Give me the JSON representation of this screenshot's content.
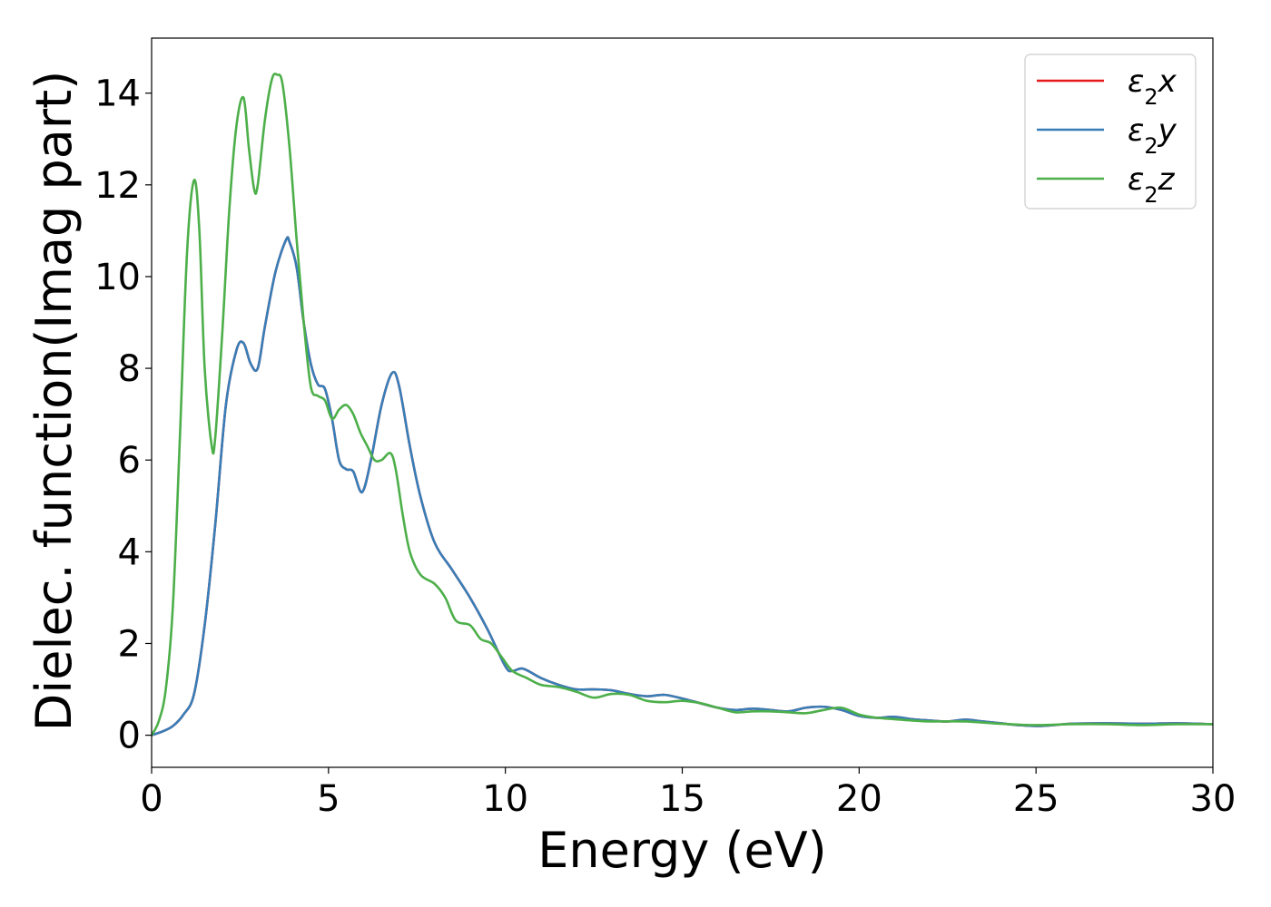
{
  "chart_data": {
    "type": "line",
    "title": "",
    "xlabel": "Energy (eV)",
    "ylabel": "Dielec. function(Imag part)",
    "xlim": [
      0,
      30
    ],
    "ylim": [
      -0.7,
      15.2
    ],
    "xticks": [
      0,
      5,
      10,
      15,
      20,
      25,
      30
    ],
    "yticks": [
      0,
      2,
      4,
      6,
      8,
      10,
      12,
      14
    ],
    "grid": false,
    "legend_position": "top-right",
    "series": [
      {
        "name": "ε2x",
        "legend_base": "ε",
        "legend_sub": "2",
        "legend_var": "x",
        "color": "#e41a1c",
        "x": [
          0,
          0.3,
          0.6,
          0.9,
          1.2,
          1.5,
          1.8,
          2.1,
          2.4,
          2.6,
          2.8,
          3.0,
          3.2,
          3.5,
          3.8,
          3.9,
          4.1,
          4.3,
          4.5,
          4.7,
          4.9,
          5.1,
          5.3,
          5.5,
          5.7,
          5.95,
          6.2,
          6.5,
          6.8,
          7.0,
          7.3,
          7.6,
          8.0,
          8.5,
          9.0,
          9.5,
          10.0,
          10.2,
          10.5,
          11.0,
          11.5,
          12.0,
          12.5,
          13.0,
          13.5,
          14.0,
          14.5,
          15.0,
          15.5,
          16.0,
          16.5,
          17.0,
          17.5,
          18.0,
          18.5,
          19.0,
          19.5,
          20.0,
          20.5,
          21.0,
          21.5,
          22.0,
          22.5,
          23.0,
          23.5,
          24.0,
          24.5,
          25.0,
          25.5,
          26.0,
          27.0,
          28.0,
          29.0,
          30.0
        ],
        "y": [
          0.0,
          0.08,
          0.2,
          0.45,
          0.9,
          2.4,
          4.6,
          7.2,
          8.4,
          8.55,
          8.1,
          8.0,
          8.9,
          10.1,
          10.8,
          10.75,
          10.2,
          9.0,
          8.1,
          7.65,
          7.55,
          6.9,
          6.0,
          5.8,
          5.75,
          5.3,
          6.0,
          7.2,
          7.9,
          7.6,
          6.3,
          5.2,
          4.2,
          3.6,
          3.0,
          2.3,
          1.5,
          1.4,
          1.45,
          1.25,
          1.1,
          1.0,
          1.0,
          0.98,
          0.9,
          0.85,
          0.88,
          0.8,
          0.7,
          0.6,
          0.55,
          0.58,
          0.55,
          0.52,
          0.6,
          0.62,
          0.55,
          0.42,
          0.38,
          0.4,
          0.35,
          0.32,
          0.3,
          0.34,
          0.3,
          0.26,
          0.22,
          0.2,
          0.22,
          0.25,
          0.26,
          0.25,
          0.26,
          0.24
        ]
      },
      {
        "name": "ε2y",
        "legend_base": "ε",
        "legend_sub": "2",
        "legend_var": "y",
        "color": "#377eb8",
        "x": [
          0,
          0.3,
          0.6,
          0.9,
          1.2,
          1.5,
          1.8,
          2.1,
          2.4,
          2.6,
          2.8,
          3.0,
          3.2,
          3.5,
          3.8,
          3.9,
          4.1,
          4.3,
          4.5,
          4.7,
          4.9,
          5.1,
          5.3,
          5.5,
          5.7,
          5.95,
          6.2,
          6.5,
          6.8,
          7.0,
          7.3,
          7.6,
          8.0,
          8.5,
          9.0,
          9.5,
          10.0,
          10.2,
          10.5,
          11.0,
          11.5,
          12.0,
          12.5,
          13.0,
          13.5,
          14.0,
          14.5,
          15.0,
          15.5,
          16.0,
          16.5,
          17.0,
          17.5,
          18.0,
          18.5,
          19.0,
          19.5,
          20.0,
          20.5,
          21.0,
          21.5,
          22.0,
          22.5,
          23.0,
          23.5,
          24.0,
          24.5,
          25.0,
          25.5,
          26.0,
          27.0,
          28.0,
          29.0,
          30.0
        ],
        "y": [
          0.0,
          0.08,
          0.2,
          0.45,
          0.9,
          2.4,
          4.6,
          7.2,
          8.4,
          8.55,
          8.1,
          8.0,
          8.9,
          10.1,
          10.8,
          10.75,
          10.2,
          9.0,
          8.1,
          7.65,
          7.55,
          6.9,
          6.0,
          5.8,
          5.75,
          5.3,
          6.0,
          7.2,
          7.9,
          7.6,
          6.3,
          5.2,
          4.2,
          3.6,
          3.0,
          2.3,
          1.5,
          1.4,
          1.45,
          1.25,
          1.1,
          1.0,
          1.0,
          0.98,
          0.9,
          0.85,
          0.88,
          0.8,
          0.7,
          0.6,
          0.55,
          0.58,
          0.55,
          0.52,
          0.6,
          0.62,
          0.55,
          0.42,
          0.38,
          0.4,
          0.35,
          0.32,
          0.3,
          0.34,
          0.3,
          0.26,
          0.22,
          0.2,
          0.22,
          0.25,
          0.26,
          0.25,
          0.26,
          0.24
        ]
      },
      {
        "name": "ε2z",
        "legend_base": "ε",
        "legend_sub": "2",
        "legend_var": "z",
        "color": "#4daf4a",
        "x": [
          0,
          0.2,
          0.4,
          0.6,
          0.8,
          1.0,
          1.2,
          1.35,
          1.5,
          1.7,
          1.8,
          2.0,
          2.2,
          2.4,
          2.6,
          2.75,
          2.9,
          3.0,
          3.2,
          3.4,
          3.55,
          3.7,
          3.9,
          4.1,
          4.3,
          4.5,
          4.7,
          4.9,
          5.1,
          5.3,
          5.5,
          5.7,
          5.9,
          6.1,
          6.3,
          6.5,
          6.75,
          6.9,
          7.1,
          7.3,
          7.6,
          8.0,
          8.3,
          8.6,
          9.0,
          9.3,
          9.6,
          9.9,
          10.2,
          10.6,
          11.0,
          11.5,
          12.0,
          12.5,
          13.0,
          13.5,
          14.0,
          14.5,
          15.0,
          15.5,
          16.0,
          16.5,
          17.0,
          17.5,
          18.0,
          18.5,
          19.0,
          19.5,
          20.0,
          20.5,
          21.0,
          21.5,
          22.0,
          23.0,
          24.0,
          25.0,
          26.0,
          27.0,
          28.0,
          29.0,
          30.0
        ],
        "y": [
          0.0,
          0.3,
          1.0,
          2.8,
          6.5,
          10.5,
          12.1,
          11.0,
          8.0,
          6.3,
          6.5,
          8.8,
          11.5,
          13.3,
          13.9,
          12.8,
          11.9,
          12.0,
          13.4,
          14.3,
          14.4,
          14.2,
          12.8,
          10.8,
          9.0,
          7.6,
          7.4,
          7.3,
          6.9,
          7.1,
          7.2,
          7.0,
          6.6,
          6.3,
          6.0,
          6.0,
          6.15,
          5.8,
          4.8,
          4.0,
          3.5,
          3.3,
          3.0,
          2.5,
          2.4,
          2.1,
          2.0,
          1.7,
          1.4,
          1.25,
          1.1,
          1.05,
          0.95,
          0.82,
          0.9,
          0.88,
          0.75,
          0.72,
          0.75,
          0.7,
          0.6,
          0.5,
          0.52,
          0.52,
          0.5,
          0.48,
          0.55,
          0.6,
          0.45,
          0.38,
          0.35,
          0.32,
          0.3,
          0.3,
          0.25,
          0.22,
          0.24,
          0.24,
          0.22,
          0.24,
          0.24
        ]
      }
    ]
  }
}
